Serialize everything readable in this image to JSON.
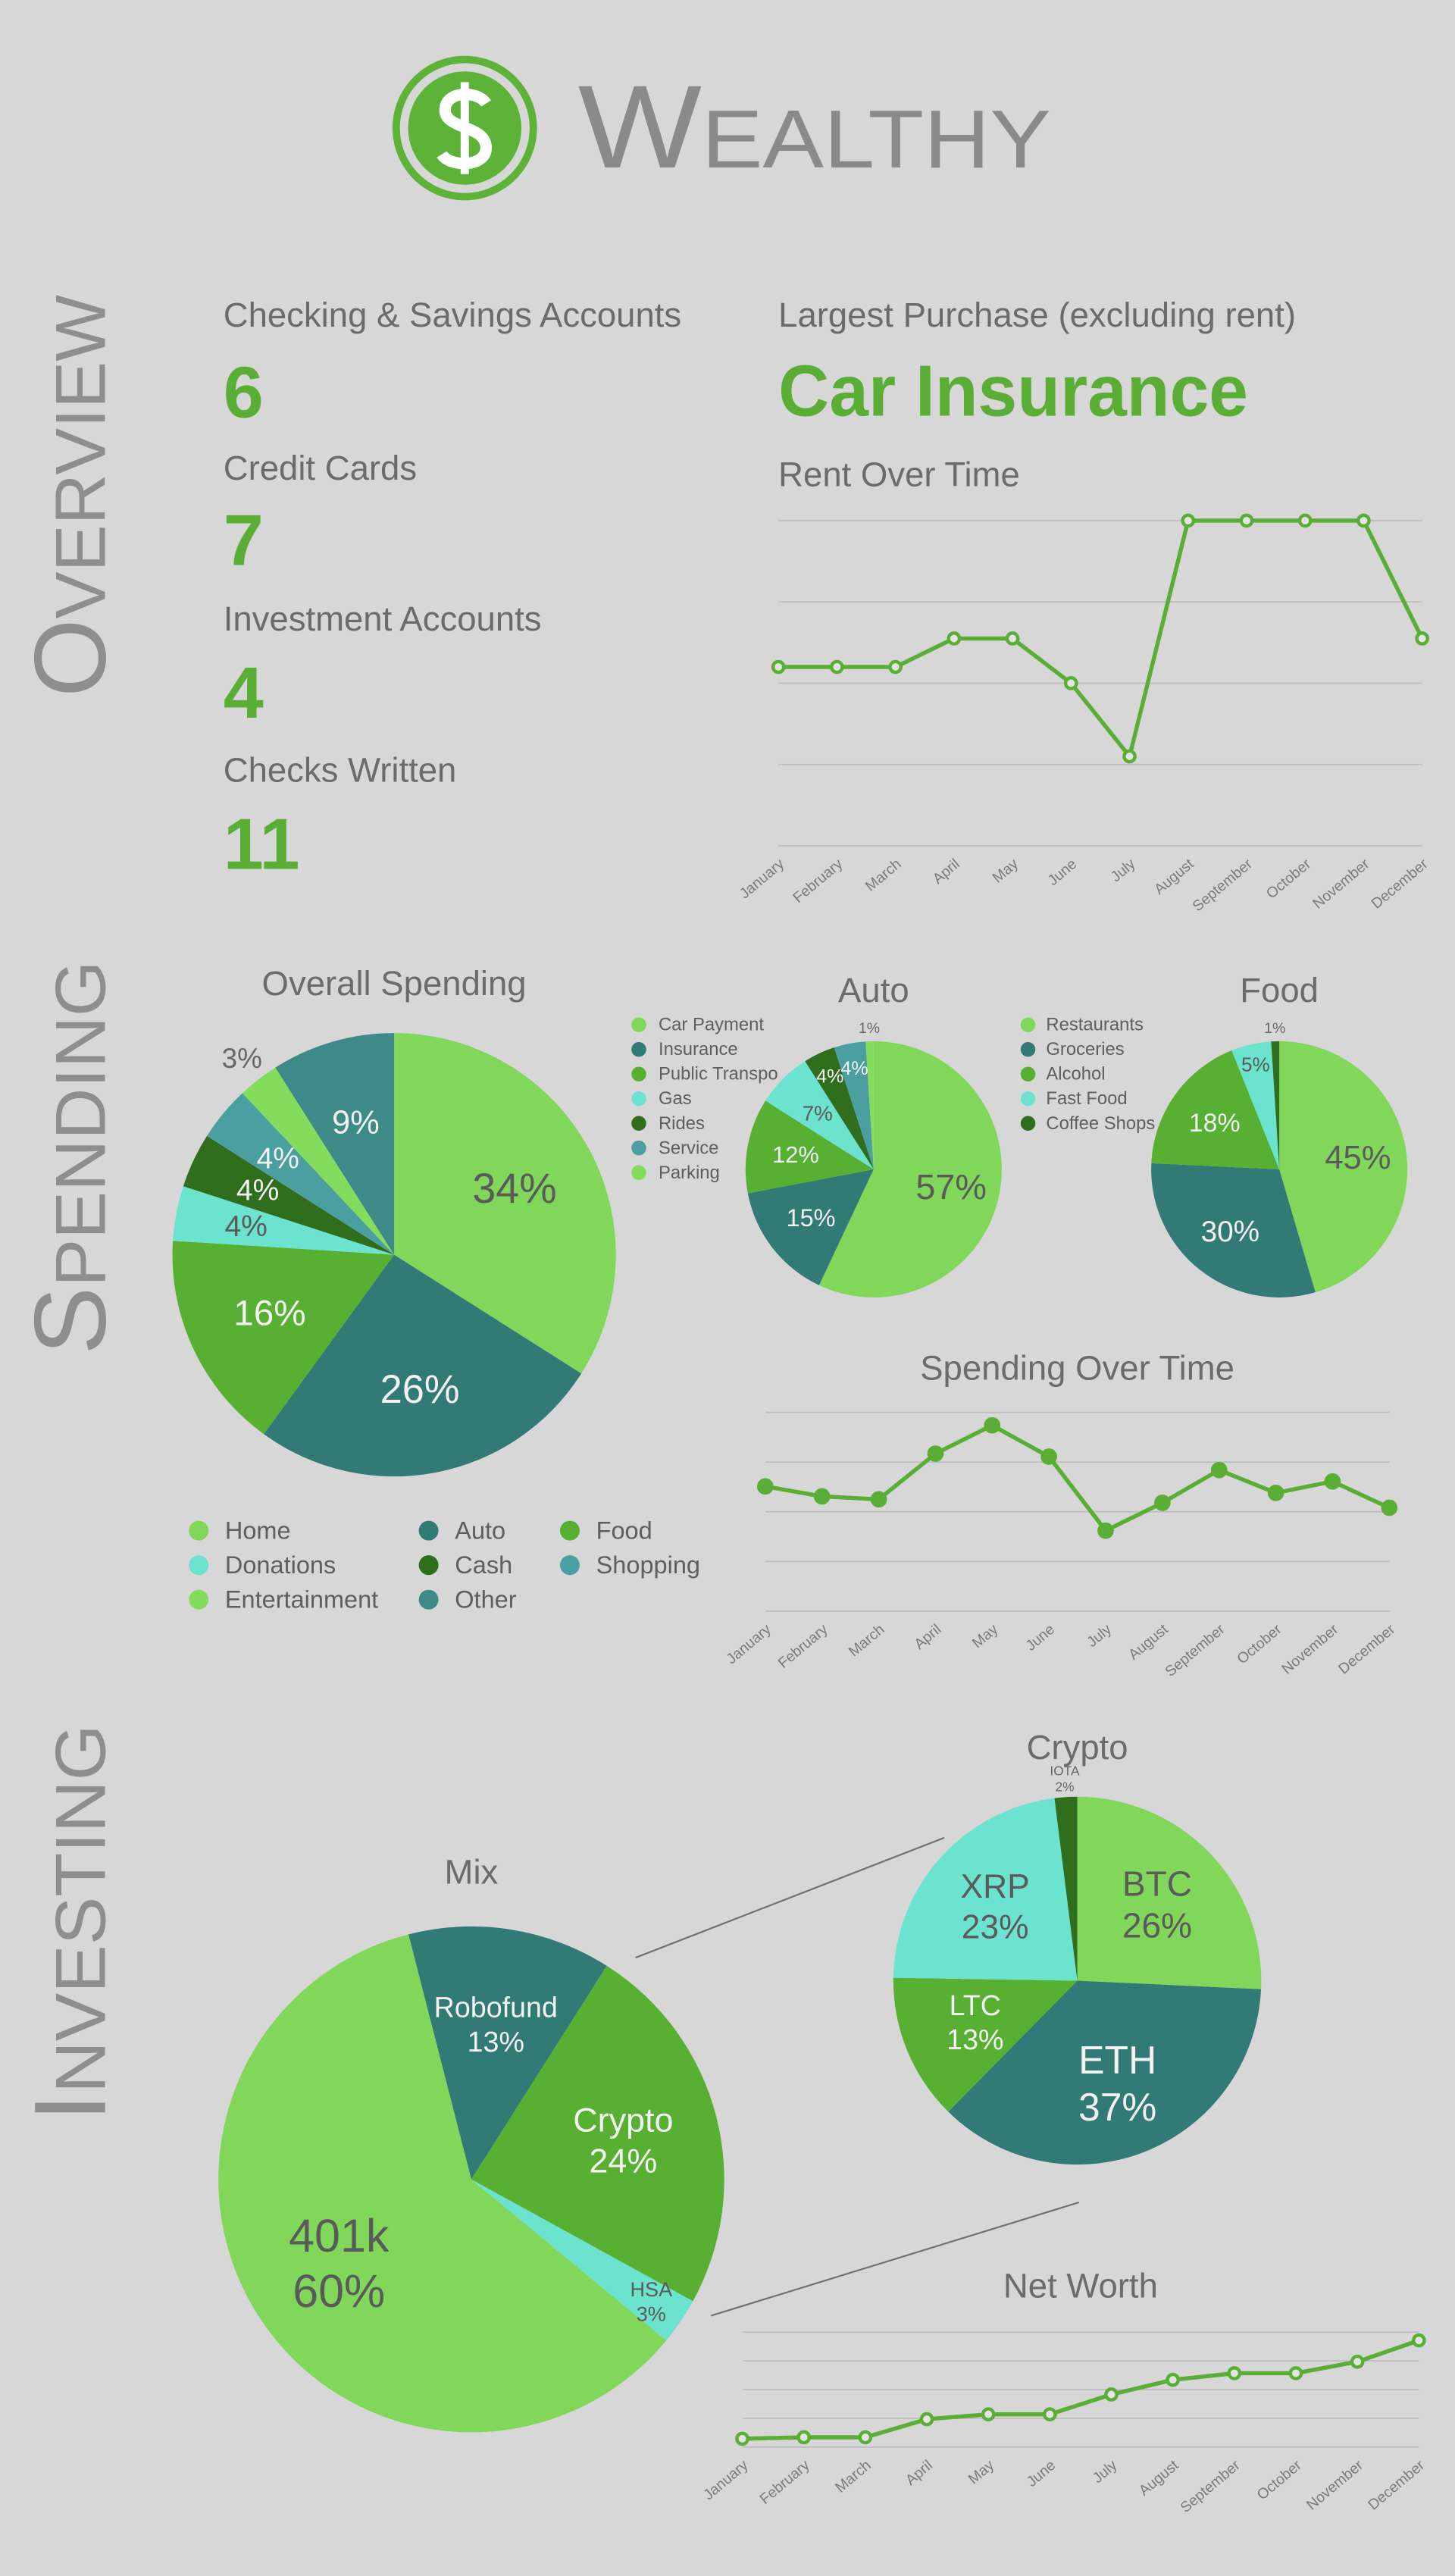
{
  "header": {
    "title": "Wealthy"
  },
  "sections": [
    "Overview",
    "Spending",
    "Investing"
  ],
  "overview": {
    "stats": [
      {
        "label": "Checking & Savings Accounts",
        "value": 6
      },
      {
        "label": "Credit Cards",
        "value": 7
      },
      {
        "label": "Investment Accounts",
        "value": 4
      },
      {
        "label": "Checks Written",
        "value": 11
      }
    ],
    "largest_purchase": {
      "label": "Largest Purchase (excluding rent)",
      "value": "Car Insurance"
    }
  },
  "chart_data": [
    {
      "type": "line",
      "title": "Rent Over Time",
      "categories": [
        "January",
        "February",
        "March",
        "April",
        "May",
        "June",
        "July",
        "August",
        "September",
        "October",
        "November",
        "December"
      ],
      "values": [
        2.2,
        2.2,
        2.2,
        2.55,
        2.55,
        2.0,
        1.1,
        4,
        4,
        4,
        4,
        2.55
      ],
      "color": "#5aad35",
      "ylim": [
        0,
        4
      ],
      "yticks": [
        0,
        1,
        2,
        3,
        4
      ],
      "grid": true
    },
    {
      "type": "pie",
      "title": "Overall Spending",
      "categories": [
        "Home",
        "Auto",
        "Food",
        "Donations",
        "Cash",
        "Shopping",
        "Entertainment",
        "Other"
      ],
      "values": [
        34,
        26,
        16,
        4,
        4,
        4,
        3,
        9
      ],
      "value_labels": [
        "34%",
        "26%",
        "16%",
        "4%",
        "4%",
        "4%",
        "3%",
        "9%"
      ],
      "colors": [
        "#80d75a",
        "#327a76",
        "#57b032",
        "#6be3cf",
        "#2e6e1d",
        "#4b9fa0",
        "#84dc5d",
        "#3e8a88"
      ],
      "legend": true
    },
    {
      "type": "pie",
      "title": "Auto",
      "categories": [
        "Car Payment",
        "Insurance",
        "Public Transpo",
        "Gas",
        "Rides",
        "Service",
        "Parking"
      ],
      "values": [
        57,
        15,
        12,
        7,
        4,
        4,
        1
      ],
      "value_labels": [
        "57%",
        "15%",
        "12%",
        "7%",
        "4%",
        "4%",
        "1%"
      ],
      "colors": [
        "#80d75a",
        "#327a76",
        "#57b032",
        "#6be3cf",
        "#2e6e1d",
        "#4b9fa0",
        "#84dc5d"
      ],
      "legend": true
    },
    {
      "type": "pie",
      "title": "Food",
      "categories": [
        "Restaurants",
        "Groceries",
        "Alcohol",
        "Fast Food",
        "Coffee Shops"
      ],
      "values": [
        45,
        30,
        18,
        5,
        1
      ],
      "value_labels": [
        "45%",
        "30%",
        "18%",
        "5%",
        "1%"
      ],
      "colors": [
        "#80d75a",
        "#327a76",
        "#57b032",
        "#6be3cf",
        "#2e6e1d"
      ],
      "legend": true
    },
    {
      "type": "line",
      "title": "Spending Over Time",
      "categories": [
        "January",
        "February",
        "March",
        "April",
        "May",
        "June",
        "July",
        "August",
        "September",
        "October",
        "November",
        "December"
      ],
      "values": [
        2.51,
        2.31,
        2.25,
        3.17,
        3.74,
        3.11,
        1.62,
        2.18,
        2.84,
        2.38,
        2.61,
        2.08
      ],
      "color": "#5aad35",
      "ylim": [
        0,
        4
      ],
      "yticks": [
        0,
        1,
        2,
        3,
        4
      ],
      "grid": true
    },
    {
      "type": "pie",
      "title": "Mix",
      "categories": [
        "Robofund",
        "Crypto",
        "HSA",
        "401k"
      ],
      "values": [
        13,
        24,
        3,
        60
      ],
      "value_labels": [
        "13%",
        "24%",
        "3%",
        "60%"
      ],
      "colors": [
        "#327a76",
        "#57b032",
        "#6be3cf",
        "#80d75a"
      ],
      "legend": false
    },
    {
      "type": "pie",
      "title": "Crypto",
      "categories": [
        "BTC",
        "ETH",
        "LTC",
        "XRP",
        "IOTA"
      ],
      "values": [
        26,
        37,
        13,
        23,
        2
      ],
      "value_labels": [
        "26%",
        "37%",
        "13%",
        "23%",
        "2%"
      ],
      "colors": [
        "#80d75a",
        "#327a76",
        "#57b032",
        "#6be3cf",
        "#2e6e1d"
      ],
      "legend": false
    },
    {
      "type": "line",
      "title": "Net Worth",
      "categories": [
        "January",
        "February",
        "March",
        "April",
        "May",
        "June",
        "July",
        "August",
        "September",
        "October",
        "November",
        "December"
      ],
      "values": [
        0.29,
        0.34,
        0.34,
        0.97,
        1.14,
        1.14,
        1.83,
        2.34,
        2.57,
        2.57,
        2.97,
        3.71
      ],
      "color": "#5aad35",
      "ylim": [
        0,
        4
      ],
      "yticks": [
        0,
        1,
        2,
        3,
        4
      ],
      "grid": true
    }
  ]
}
